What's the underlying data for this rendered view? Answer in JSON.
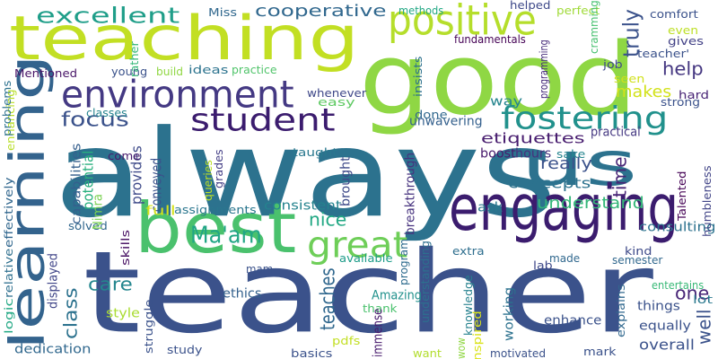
{
  "words": [
    {
      "text": "teacher",
      "color": "#3b528b"
    },
    {
      "text": "always",
      "color": "#2c728e"
    },
    {
      "text": "good",
      "color": "#8fd744"
    },
    {
      "text": "teaching",
      "color": "#c2df23"
    },
    {
      "text": "best",
      "color": "#4ac16d"
    },
    {
      "text": "us",
      "color": "#2c728e"
    },
    {
      "text": "learning",
      "color": "#33638d"
    },
    {
      "text": "engaging",
      "color": "#3b1c6e"
    },
    {
      "text": "environment",
      "color": "#443983"
    },
    {
      "text": "positive",
      "color": "#b5de2b"
    },
    {
      "text": "fostering",
      "color": "#21918c"
    },
    {
      "text": "student",
      "color": "#3b1c6e"
    },
    {
      "text": "great",
      "color": "#6ece58"
    },
    {
      "text": "excellent",
      "color": "#1f9e89"
    },
    {
      "text": "cooperative",
      "color": "#31688e"
    },
    {
      "text": "Ma'am",
      "color": "#21a685"
    },
    {
      "text": "focus",
      "color": "#3b528b"
    },
    {
      "text": "help",
      "color": "#453781"
    },
    {
      "text": "makes",
      "color": "#d2e21b"
    },
    {
      "text": "really",
      "color": "#3b528b"
    },
    {
      "text": "understand",
      "color": "#35b779"
    },
    {
      "text": "time",
      "color": "#482576"
    },
    {
      "text": "nice",
      "color": "#22a884"
    },
    {
      "text": "class",
      "color": "#2c728e"
    },
    {
      "text": "care",
      "color": "#24868e"
    },
    {
      "text": "teaches",
      "color": "#31688e"
    },
    {
      "text": "one",
      "color": "#482677"
    },
    {
      "text": "truly",
      "color": "#3b528b"
    },
    {
      "text": "well",
      "color": "#3b528b"
    },
    {
      "text": "way",
      "color": "#25858e"
    },
    {
      "text": "etiquettes",
      "color": "#481d6f"
    },
    {
      "text": "ask",
      "color": "#2a788e"
    },
    {
      "text": "concepts",
      "color": "#2c728e"
    },
    {
      "text": "consulting",
      "color": "#2c728e"
    },
    {
      "text": "conveyed",
      "color": "#3b528b"
    },
    {
      "text": "provides",
      "color": "#3e4a89"
    },
    {
      "text": "potential",
      "color": "#2ab07f"
    },
    {
      "text": "classes",
      "color": "#25838e"
    },
    {
      "text": "consistent",
      "color": "#25838e"
    },
    {
      "text": "assignments",
      "color": "#2a768e"
    },
    {
      "text": "full",
      "color": "#d5e21a"
    },
    {
      "text": "ideas",
      "color": "#2c738e"
    },
    {
      "text": "practice",
      "color": "#50c46a"
    },
    {
      "text": "unwavering",
      "color": "#34608d"
    },
    {
      "text": "done",
      "color": "#31688e"
    },
    {
      "text": "easy",
      "color": "#5ec962"
    },
    {
      "text": "whenever",
      "color": "#3f4889"
    },
    {
      "text": "hours",
      "color": "#46317e"
    },
    {
      "text": "boost",
      "color": "#481a6c"
    },
    {
      "text": "practical",
      "color": "#453882"
    },
    {
      "text": "sake",
      "color": "#25848e"
    },
    {
      "text": "breakthrough",
      "color": "#46327e"
    },
    {
      "text": "brought",
      "color": "#3e4989"
    },
    {
      "text": "taught",
      "color": "#2a788e"
    },
    {
      "text": "come",
      "color": "#481b6d"
    },
    {
      "text": "queries",
      "color": "#bddf26"
    },
    {
      "text": "grades",
      "color": "#433e85"
    },
    {
      "text": "solved",
      "color": "#31678e"
    },
    {
      "text": "Nimra",
      "color": "#7ad151"
    },
    {
      "text": "capabilities",
      "color": "#355f8d"
    },
    {
      "text": "displayed",
      "color": "#404588"
    },
    {
      "text": "effectively",
      "color": "#31678e"
    },
    {
      "text": "relative",
      "color": "#2e6f8e"
    },
    {
      "text": "enhancing",
      "color": "#b8de29"
    },
    {
      "text": "problems",
      "color": "#2c718e"
    },
    {
      "text": "Mentioned",
      "color": "#481467"
    },
    {
      "text": "young",
      "color": "#3b528b"
    },
    {
      "text": "rather",
      "color": "#35b779"
    },
    {
      "text": "build",
      "color": "#90d743"
    },
    {
      "text": "fundamentals",
      "color": "#440154"
    },
    {
      "text": "methods",
      "color": "#22a884"
    },
    {
      "text": "Miss",
      "color": "#31688e"
    },
    {
      "text": "helped",
      "color": "#3e4989"
    },
    {
      "text": "perfect",
      "color": "#a0da39"
    },
    {
      "text": "comfort",
      "color": "#3b528b"
    },
    {
      "text": "cramming",
      "color": "#46c06f"
    },
    {
      "text": "programming",
      "color": "#472d7b"
    },
    {
      "text": "insists",
      "color": "#2d708e"
    },
    {
      "text": "job",
      "color": "#3e4989"
    },
    {
      "text": "gives",
      "color": "#424186"
    },
    {
      "text": "even",
      "color": "#bddf26"
    },
    {
      "text": "teacher'",
      "color": "#3b528b"
    },
    {
      "text": "seen",
      "color": "#d0e11c"
    },
    {
      "text": "hard",
      "color": "#482475"
    },
    {
      "text": "strong",
      "color": "#3b528b"
    },
    {
      "text": "humbleness",
      "color": "#414487"
    },
    {
      "text": "Talented",
      "color": "#440154"
    },
    {
      "text": "available",
      "color": "#1e9c89"
    },
    {
      "text": "understanding",
      "color": "#2d708e"
    },
    {
      "text": "program",
      "color": "#2f6c8e"
    },
    {
      "text": "extra",
      "color": "#2e6e8e"
    },
    {
      "text": "knowledge",
      "color": "#26818e"
    },
    {
      "text": "lab",
      "color": "#3e4989"
    },
    {
      "text": "made",
      "color": "#31688e"
    },
    {
      "text": "kind",
      "color": "#3e4a89"
    },
    {
      "text": "semester",
      "color": "#31688e"
    },
    {
      "text": "skills",
      "color": "#471063"
    },
    {
      "text": "struggle",
      "color": "#3b528b"
    },
    {
      "text": "ethics",
      "color": "#34618d"
    },
    {
      "text": "style",
      "color": "#aadc32"
    },
    {
      "text": "mam",
      "color": "#3b528b"
    },
    {
      "text": "Amazing",
      "color": "#21918c"
    },
    {
      "text": "thank",
      "color": "#4ac16d"
    },
    {
      "text": "immense",
      "color": "#481b6d"
    },
    {
      "text": "working",
      "color": "#2c718e"
    },
    {
      "text": "enhance",
      "color": "#3b528b"
    },
    {
      "text": "explains",
      "color": "#31688e"
    },
    {
      "text": "equally",
      "color": "#3b528b"
    },
    {
      "text": "things",
      "color": "#3b528b"
    },
    {
      "text": "overall",
      "color": "#3b528b"
    },
    {
      "text": "lot",
      "color": "#2a788e"
    },
    {
      "text": "entertains",
      "color": "#38b977"
    },
    {
      "text": "logic",
      "color": "#22a884"
    },
    {
      "text": "dedication",
      "color": "#31688e"
    },
    {
      "text": "study",
      "color": "#3b528b"
    },
    {
      "text": "pdfs",
      "color": "#c2df23"
    },
    {
      "text": "basics",
      "color": "#3b528b"
    },
    {
      "text": "want",
      "color": "#b2dd2d"
    },
    {
      "text": "wow",
      "color": "#90d743"
    },
    {
      "text": "inspired",
      "color": "#dae319"
    },
    {
      "text": "motivated",
      "color": "#3b528b"
    },
    {
      "text": "mark",
      "color": "#3b528b"
    }
  ]
}
